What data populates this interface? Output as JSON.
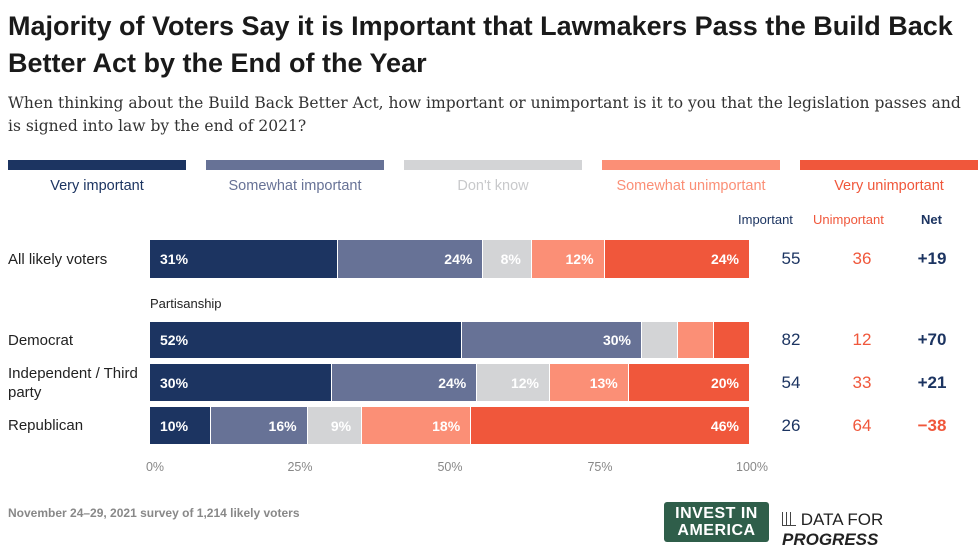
{
  "chart_data": {
    "type": "bar",
    "orientation": "horizontal-stacked",
    "title": "Majority of Voters Say it is Important that Lawmakers Pass the Build Back Better Act by the End of the Year",
    "subtitle": "When thinking about the Build Back Better Act, how important or unimportant is it to you that the legislation passes and is signed into law by the end of 2021?",
    "legend": [
      {
        "name": "Very important",
        "color": "#1c3461"
      },
      {
        "name": "Somewhat important",
        "color": "#677296"
      },
      {
        "name": "Don't know",
        "color": "#d3d4d6"
      },
      {
        "name": "Somewhat unimportant",
        "color": "#fb8f76"
      },
      {
        "name": "Very unimportant",
        "color": "#f0573b"
      }
    ],
    "column_headers": {
      "important": "Important",
      "unimportant": "Unimportant",
      "net": "Net"
    },
    "group_label": "Partisanship",
    "rows": [
      {
        "label": "All likely voters",
        "values": [
          31,
          24,
          8,
          12,
          24
        ],
        "labels": [
          "31%",
          "24%",
          "8%",
          "12%",
          "24%"
        ],
        "important": "55",
        "unimportant": "36",
        "net": "+19"
      },
      {
        "label": "Democrat",
        "values": [
          52,
          30,
          6,
          6,
          6
        ],
        "labels": [
          "52%",
          "30%",
          "",
          "",
          ""
        ],
        "important": "82",
        "unimportant": "12",
        "net": "+70"
      },
      {
        "label": "Independent / Third party",
        "values": [
          30,
          24,
          12,
          13,
          20
        ],
        "labels": [
          "30%",
          "24%",
          "12%",
          "13%",
          "20%"
        ],
        "important": "54",
        "unimportant": "33",
        "net": "+21"
      },
      {
        "label": "Republican",
        "values": [
          10,
          16,
          9,
          18,
          46
        ],
        "labels": [
          "10%",
          "16%",
          "9%",
          "18%",
          "46%"
        ],
        "important": "26",
        "unimportant": "64",
        "net": "−38"
      }
    ],
    "xticks": [
      "0%",
      "25%",
      "50%",
      "75%",
      "100%"
    ],
    "xlim": [
      0,
      100
    ]
  },
  "footer": {
    "source": "November 24–29, 2021 survey of 1,214 likely voters",
    "logo1": "INVEST IN AMERICA",
    "logo2_a": "DATA FOR ",
    "logo2_b": "PROGRESS"
  }
}
